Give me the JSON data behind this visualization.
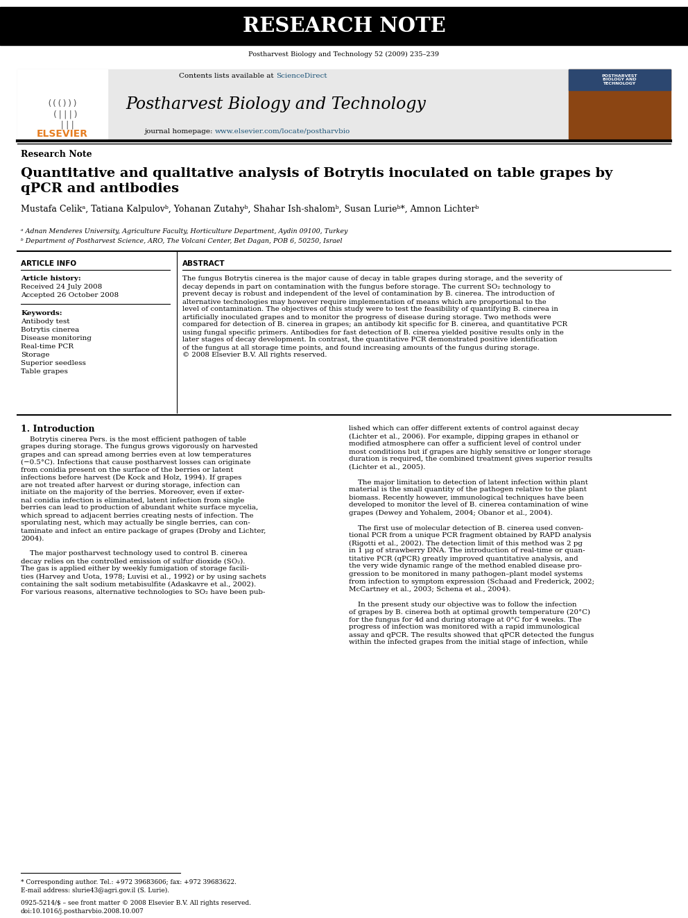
{
  "header_text": "RESEARCH NOTE",
  "journal_citation": "Postharvest Biology and Technology 52 (2009) 235–239",
  "journal_name": "Postharvest Biology and Technology",
  "contents_text": "Contents lists available at ScienceDirect",
  "journal_homepage": "journal homepage: www.elsevier.com/locate/postharvbio",
  "elsevier_text": "ELSEVIER",
  "section_label": "Research Note",
  "title_line1": "Quantitative and qualitative analysis of Botrytis inoculated on table grapes by",
  "title_line2": "qPCR and antibodies",
  "authors": "Mustafa Celikᵃ, Tatiana Kalpulovᵇ, Yohanan Zutahyᵇ, Shahar Ish-shalomᵇ, Susan Lurieᵇ*, Amnon Lichterᵇ",
  "affil_a": "ᵃ Adnan Menderes University, Agriculture Faculty, Horticulture Department, Aydin 09100, Turkey",
  "affil_b": "ᵇ Department of Postharvest Science, ARO, The Volcani Center, Bet Dagan, POB 6, 50250, Israel",
  "article_info_title": "ARTICLE INFO",
  "article_history_title": "Article history:",
  "received": "Received 24 July 2008",
  "accepted": "Accepted 26 October 2008",
  "keywords_title": "Keywords:",
  "keywords": [
    "Antibody test",
    "Botrytis cinerea",
    "Disease monitoring",
    "Real-time PCR",
    "Storage",
    "Superior seedless",
    "Table grapes"
  ],
  "abstract_title": "ABSTRACT",
  "abstract_lines": [
    "The fungus Botrytis cinerea is the major cause of decay in table grapes during storage, and the severity of",
    "decay depends in part on contamination with the fungus before storage. The current SO₂ technology to",
    "prevent decay is robust and independent of the level of contamination by B. cinerea. The introduction of",
    "alternative technologies may however require implementation of means which are proportional to the",
    "level of contamination. The objectives of this study were to test the feasibility of quantifying B. cinerea in",
    "artificially inoculated grapes and to monitor the progress of disease during storage. Two methods were",
    "compared for detection of B. cinerea in grapes; an antibody kit specific for B. cinerea, and quantitative PCR",
    "using fungal specific primers. Antibodies for fast detection of B. cinerea yielded positive results only in the",
    "later stages of decay development. In contrast, the quantitative PCR demonstrated positive identification",
    "of the fungus at all storage time points, and found increasing amounts of the fungus during storage.",
    "© 2008 Elsevier B.V. All rights reserved."
  ],
  "intro_title": "1. Introduction",
  "col1_lines": [
    "    Botrytis cinerea Pers. is the most efficient pathogen of table",
    "grapes during storage. The fungus grows vigorously on harvested",
    "grapes and can spread among berries even at low temperatures",
    "(−0.5°C). Infections that cause postharvest losses can originate",
    "from conidia present on the surface of the berries or latent",
    "infections before harvest (De Kock and Holz, 1994). If grapes",
    "are not treated after harvest or during storage, infection can",
    "initiate on the majority of the berries. Moreover, even if exter-",
    "nal conidia infection is eliminated, latent infection from single",
    "berries can lead to production of abundant white surface mycelia,",
    "which spread to adjacent berries creating nests of infection. The",
    "sporulating nest, which may actually be single berries, can con-",
    "taminate and infect an entire package of grapes (Droby and Lichter,",
    "2004).",
    "",
    "    The major postharvest technology used to control B. cinerea",
    "decay relies on the controlled emission of sulfur dioxide (SO₂).",
    "The gas is applied either by weekly fumigation of storage facili-",
    "ties (Harvey and Uota, 1978; Luvisi et al., 1992) or by using sachets",
    "containing the salt sodium metabisulfite (Adaskavre et al., 2002).",
    "For various reasons, alternative technologies to SO₂ have been pub-"
  ],
  "col2_lines": [
    "lished which can offer different extents of control against decay",
    "(Lichter et al., 2006). For example, dipping grapes in ethanol or",
    "modified atmosphere can offer a sufficient level of control under",
    "most conditions but if grapes are highly sensitive or longer storage",
    "duration is required, the combined treatment gives superior results",
    "(Lichter et al., 2005).",
    "",
    "    The major limitation to detection of latent infection within plant",
    "material is the small quantity of the pathogen relative to the plant",
    "biomass. Recently however, immunological techniques have been",
    "developed to monitor the level of B. cinerea contamination of wine",
    "grapes (Dewey and Yohalem, 2004; Obanor et al., 2004).",
    "",
    "    The first use of molecular detection of B. cinerea used conven-",
    "tional PCR from a unique PCR fragment obtained by RAPD analysis",
    "(Rigotti et al., 2002). The detection limit of this method was 2 pg",
    "in 1 μg of strawberry DNA. The introduction of real-time or quan-",
    "titative PCR (qPCR) greatly improved quantitative analysis, and",
    "the very wide dynamic range of the method enabled disease pro-",
    "gression to be monitored in many pathogen–plant model systems",
    "from infection to symptom expression (Schaad and Frederick, 2002;",
    "McCartney et al., 2003; Schena et al., 2004).",
    "",
    "    In the present study our objective was to follow the infection",
    "of grapes by B. cinerea both at optimal growth temperature (20°C)",
    "for the fungus for 4d and during storage at 0°C for 4 weeks. The",
    "progress of infection was monitored with a rapid immunological",
    "assay and qPCR. The results showed that qPCR detected the fungus",
    "within the infected grapes from the initial stage of infection, while"
  ],
  "footnote_corr": "* Corresponding author. Tel.: +972 39683606; fax: +972 39683622.",
  "footnote_email": "E-mail address: slurie43@agri.gov.il (S. Lurie).",
  "footer_left": "0925-5214/$ – see front matter © 2008 Elsevier B.V. All rights reserved.",
  "footer_doi": "doi:10.1016/j.postharvbio.2008.10.007",
  "bg_color": "#ffffff",
  "header_bg": "#000000",
  "header_fg": "#ffffff",
  "journal_box_bg": "#e8e8e8",
  "elsevier_color": "#e67e22",
  "link_color": "#1a5276"
}
